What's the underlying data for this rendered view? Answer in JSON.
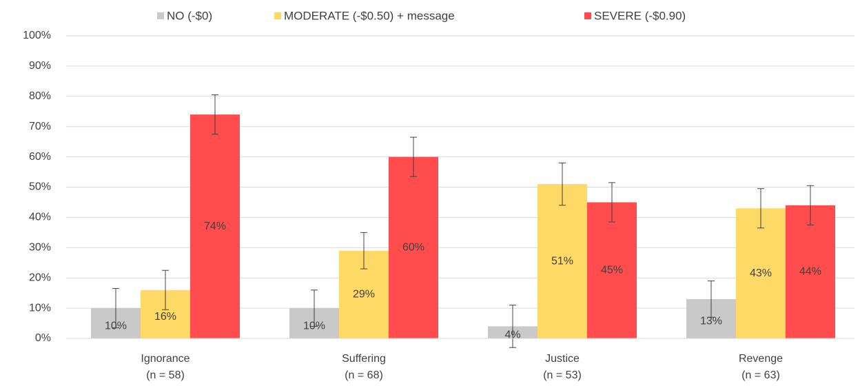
{
  "chart_data": {
    "type": "bar",
    "categories": [
      [
        "Ignorance",
        "(n = 58)"
      ],
      [
        "Suffering",
        "(n = 68)"
      ],
      [
        "Justice",
        "(n = 53)"
      ],
      [
        "Revenge",
        "(n = 63)"
      ]
    ],
    "series": [
      {
        "name": "NO (-$0)",
        "color": "#c9c9c9",
        "values": [
          10,
          10,
          4,
          13
        ],
        "value_labels": [
          "10%",
          "10%",
          "4%",
          "13%"
        ],
        "errors": [
          6.5,
          6,
          7,
          6
        ]
      },
      {
        "name": "MODERATE (-$0.50) + message",
        "color": "#ffd966",
        "values": [
          16,
          29,
          51,
          43
        ],
        "value_labels": [
          "16%",
          "29%",
          "51%",
          "43%"
        ],
        "errors": [
          6.5,
          6,
          7,
          6.5
        ]
      },
      {
        "name": "SEVERE (-$0.90)",
        "color": "#ff4d4d",
        "values": [
          74,
          60,
          45,
          44
        ],
        "value_labels": [
          "74%",
          "60%",
          "45%",
          "44%"
        ],
        "errors": [
          6.5,
          6.5,
          6.5,
          6.5
        ]
      }
    ],
    "ylim": [
      0,
      100
    ],
    "yticks": [
      {
        "value": 0,
        "label": "0%"
      },
      {
        "value": 10,
        "label": "10%"
      },
      {
        "value": 20,
        "label": "20%"
      },
      {
        "value": 30,
        "label": "30%"
      },
      {
        "value": 40,
        "label": "40%"
      },
      {
        "value": 50,
        "label": "50%"
      },
      {
        "value": 60,
        "label": "60%"
      },
      {
        "value": 70,
        "label": "70%"
      },
      {
        "value": 80,
        "label": "80%"
      },
      {
        "value": 90,
        "label": "90%"
      },
      {
        "value": 100,
        "label": "100%"
      }
    ],
    "grid": true,
    "legend": "top"
  }
}
